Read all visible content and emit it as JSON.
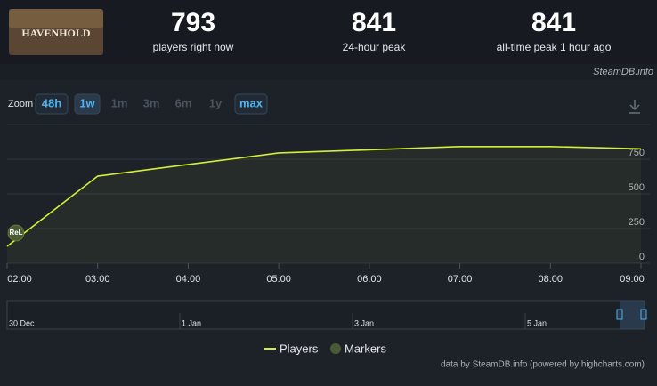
{
  "header": {
    "game": "HAVENHOLD",
    "stats": [
      {
        "value": 793,
        "label": "players right now"
      },
      {
        "value": 841,
        "label": "24-hour peak"
      },
      {
        "value": 841,
        "label": "all-time peak 1 hour ago"
      }
    ],
    "source": "SteamDB.info"
  },
  "zoom": {
    "label": "Zoom",
    "options": [
      "48h",
      "1w",
      "1m",
      "3m",
      "6m",
      "1y",
      "max"
    ],
    "enabled": [
      "48h",
      "1w",
      "max"
    ],
    "selected": "1w"
  },
  "chart_data": {
    "type": "line",
    "categories": [
      "02:00",
      "03:00",
      "04:00",
      "05:00",
      "06:00",
      "07:00",
      "08:00",
      "09:00"
    ],
    "series": [
      {
        "name": "Players",
        "color": "#d2ef3a",
        "values": [
          122,
          628,
          712,
          795,
          818,
          841,
          841,
          825
        ]
      }
    ],
    "markers": {
      "name": "Markers",
      "color": "#4a5a35",
      "labels": [
        "ReL"
      ]
    },
    "ylim": [
      0,
      1000
    ],
    "yticks": [
      0,
      250,
      500,
      750
    ],
    "grid": true
  },
  "navigator": {
    "labels": [
      "30 Dec",
      "1 Jan",
      "3 Jan",
      "5 Jan"
    ]
  },
  "footer": "data by SteamDB.info (powered by highcharts.com)"
}
